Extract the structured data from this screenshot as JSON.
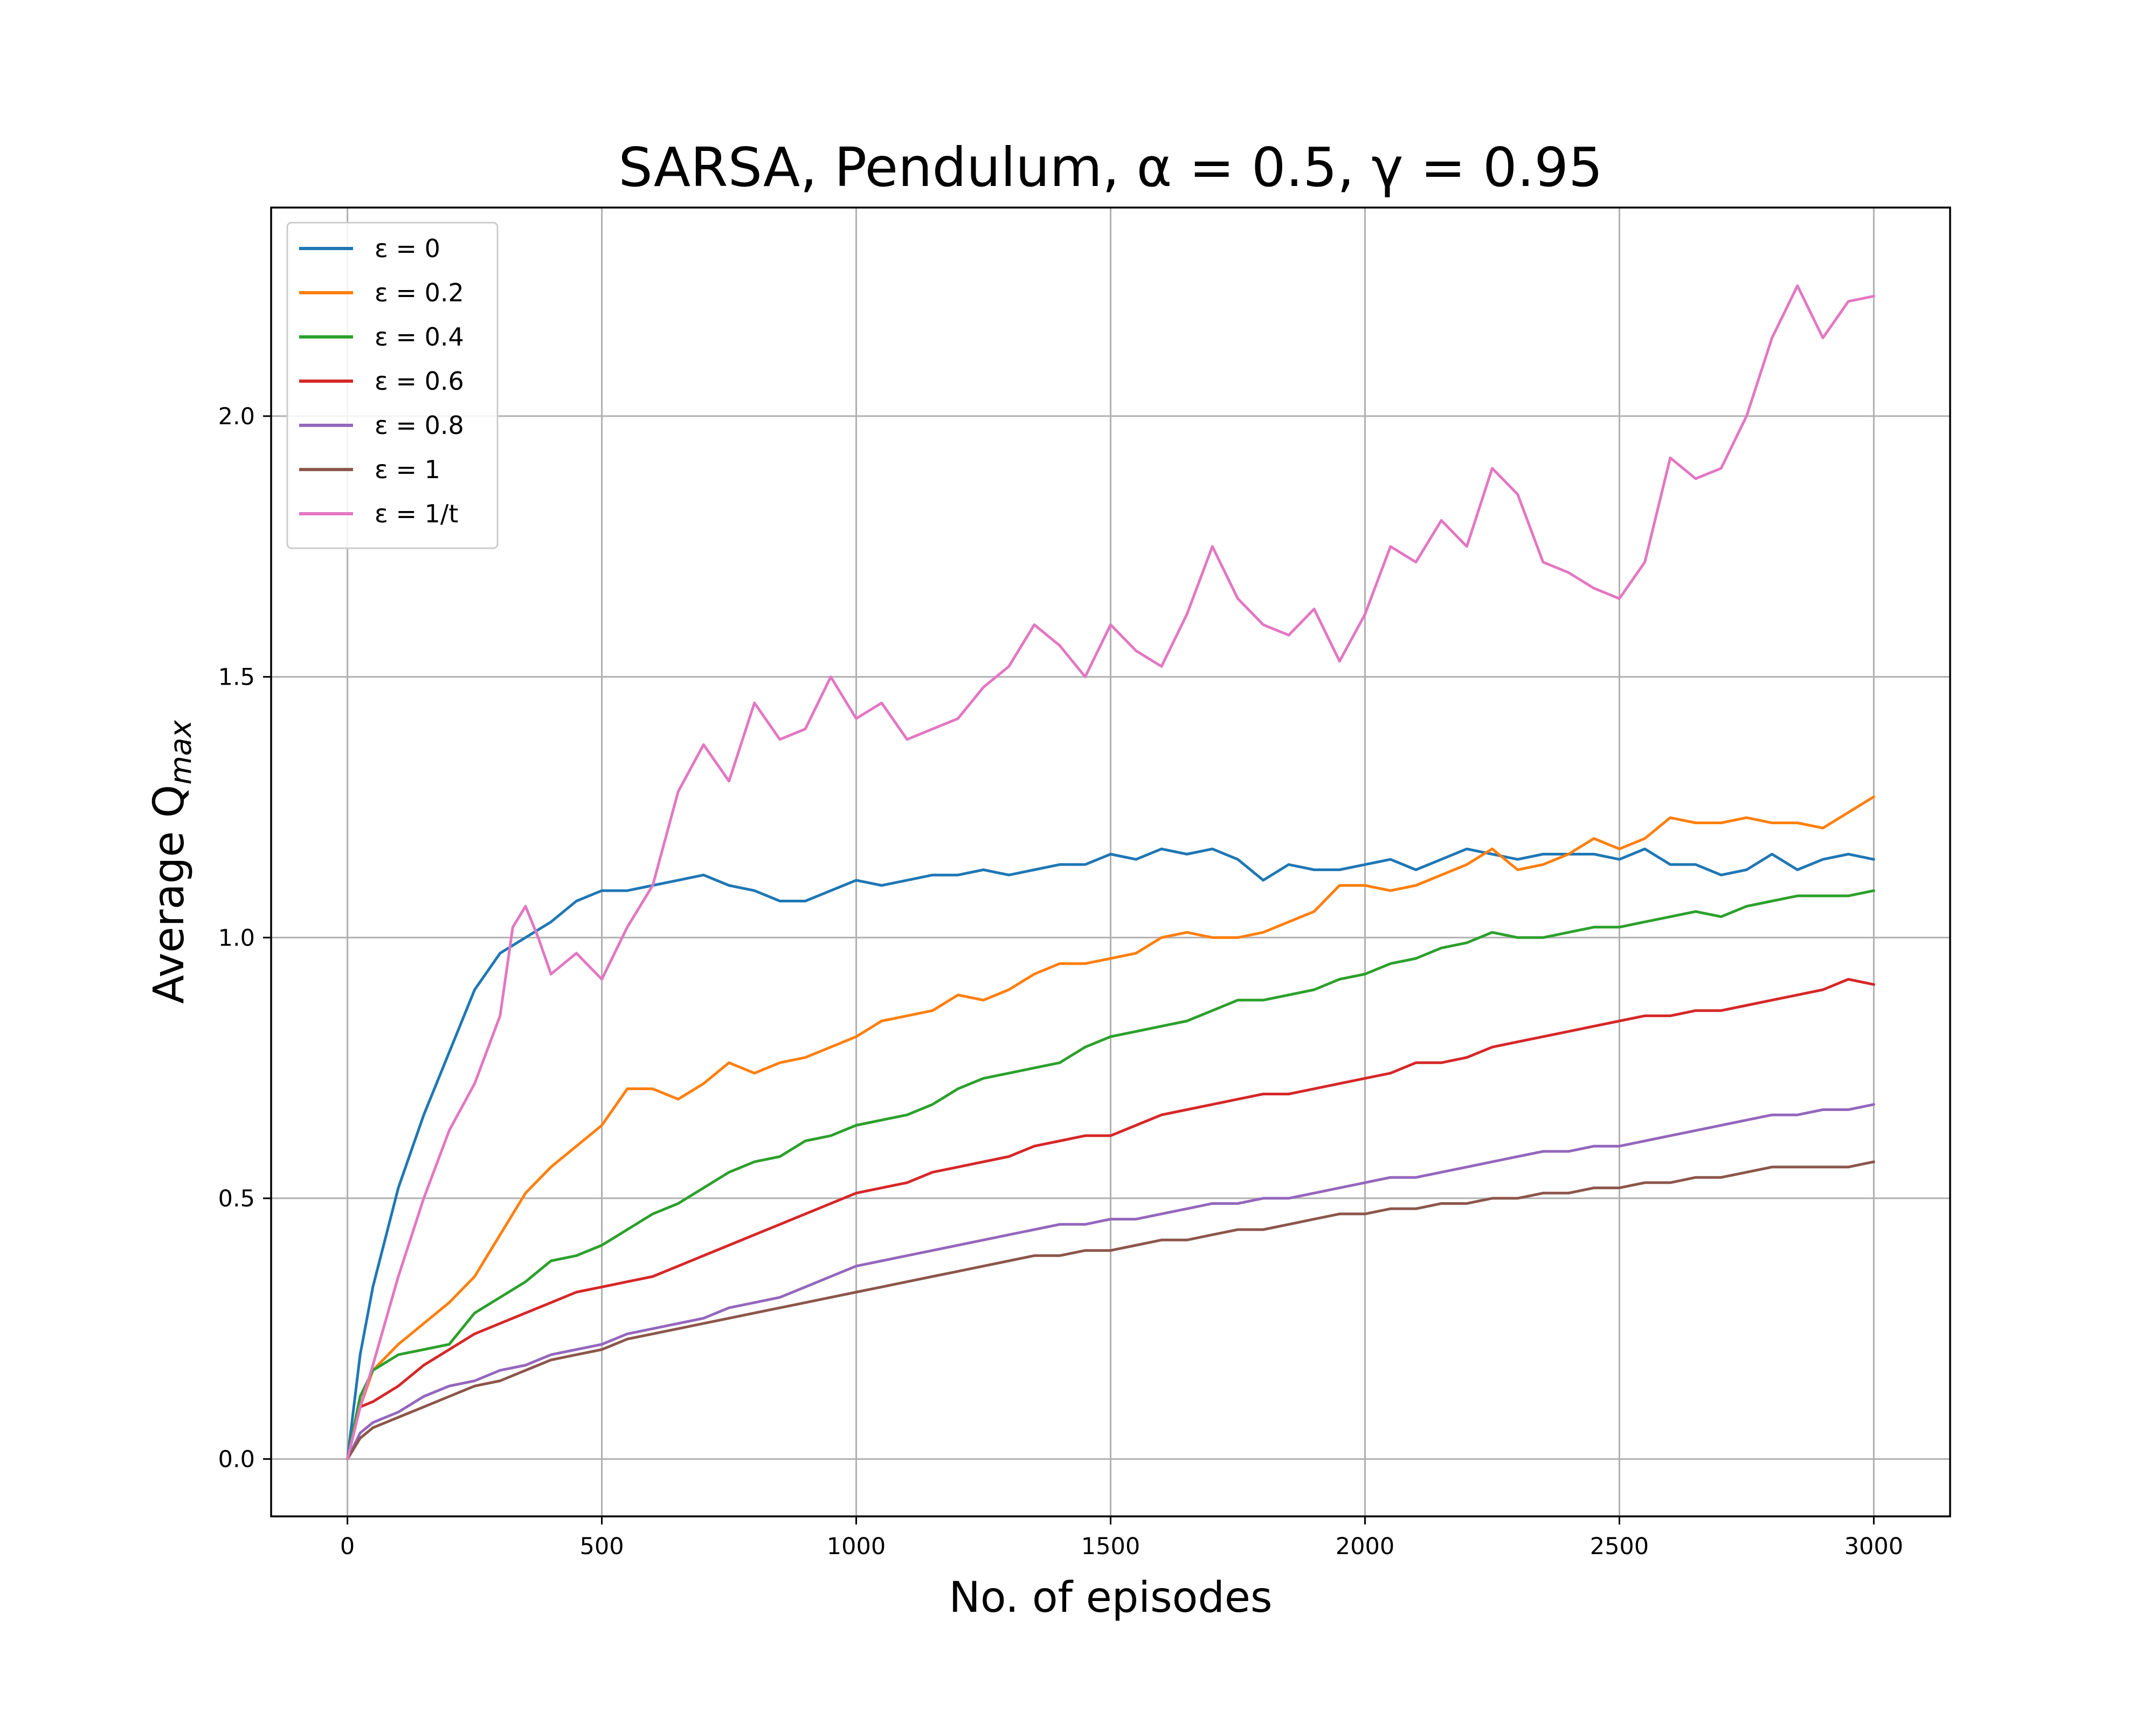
{
  "chart_data": {
    "type": "line",
    "title": "SARSA, Pendulum, α = 0.5, γ = 0.95",
    "xlabel": "No. of episodes",
    "ylabel_main": "Average Q",
    "ylabel_sub": "max",
    "xlim": [
      -150,
      3150
    ],
    "ylim": [
      -0.11,
      2.4
    ],
    "xticks": [
      0,
      500,
      1000,
      1500,
      2000,
      2500,
      3000
    ],
    "yticks": [
      0.0,
      0.5,
      1.0,
      1.5,
      2.0
    ],
    "xtick_labels": [
      "0",
      "500",
      "1000",
      "1500",
      "2000",
      "2500",
      "3000"
    ],
    "ytick_labels": [
      "0.0",
      "0.5",
      "1.0",
      "1.5",
      "2.0"
    ],
    "grid": true,
    "legend_position": "top-left",
    "series": [
      {
        "name": "ε = 0",
        "color": "#1f77b4",
        "x": [
          0,
          25,
          50,
          100,
          150,
          200,
          250,
          300,
          350,
          400,
          450,
          500,
          550,
          600,
          650,
          700,
          750,
          800,
          850,
          900,
          950,
          1000,
          1050,
          1100,
          1150,
          1200,
          1250,
          1300,
          1350,
          1400,
          1450,
          1500,
          1550,
          1600,
          1650,
          1700,
          1750,
          1800,
          1850,
          1900,
          1950,
          2000,
          2050,
          2100,
          2150,
          2200,
          2250,
          2300,
          2350,
          2400,
          2450,
          2500,
          2550,
          2600,
          2650,
          2700,
          2750,
          2800,
          2850,
          2900,
          2950,
          3000
        ],
        "y": [
          0.0,
          0.2,
          0.33,
          0.52,
          0.66,
          0.78,
          0.9,
          0.97,
          1.0,
          1.03,
          1.07,
          1.09,
          1.09,
          1.1,
          1.11,
          1.12,
          1.1,
          1.09,
          1.07,
          1.07,
          1.09,
          1.11,
          1.1,
          1.11,
          1.12,
          1.12,
          1.13,
          1.12,
          1.13,
          1.14,
          1.14,
          1.16,
          1.15,
          1.17,
          1.16,
          1.17,
          1.15,
          1.11,
          1.14,
          1.13,
          1.13,
          1.14,
          1.15,
          1.13,
          1.15,
          1.17,
          1.16,
          1.15,
          1.16,
          1.16,
          1.16,
          1.15,
          1.17,
          1.14,
          1.14,
          1.12,
          1.13,
          1.16,
          1.13,
          1.15,
          1.16,
          1.15
        ]
      },
      {
        "name": "ε = 0.2",
        "color": "#ff7f0e",
        "x": [
          0,
          25,
          50,
          100,
          150,
          200,
          250,
          300,
          350,
          400,
          450,
          500,
          550,
          600,
          650,
          700,
          750,
          800,
          850,
          900,
          950,
          1000,
          1050,
          1100,
          1150,
          1200,
          1250,
          1300,
          1350,
          1400,
          1450,
          1500,
          1550,
          1600,
          1650,
          1700,
          1750,
          1800,
          1850,
          1900,
          1950,
          2000,
          2050,
          2100,
          2150,
          2200,
          2250,
          2300,
          2350,
          2400,
          2450,
          2500,
          2550,
          2600,
          2650,
          2700,
          2750,
          2800,
          2850,
          2900,
          2950,
          3000
        ],
        "y": [
          0.0,
          0.1,
          0.17,
          0.22,
          0.26,
          0.3,
          0.35,
          0.43,
          0.51,
          0.56,
          0.6,
          0.64,
          0.71,
          0.71,
          0.69,
          0.72,
          0.76,
          0.74,
          0.76,
          0.77,
          0.79,
          0.81,
          0.84,
          0.85,
          0.86,
          0.89,
          0.88,
          0.9,
          0.93,
          0.95,
          0.95,
          0.96,
          0.97,
          1.0,
          1.01,
          1.0,
          1.0,
          1.01,
          1.03,
          1.05,
          1.1,
          1.1,
          1.09,
          1.1,
          1.12,
          1.14,
          1.17,
          1.13,
          1.14,
          1.16,
          1.19,
          1.17,
          1.19,
          1.23,
          1.22,
          1.22,
          1.23,
          1.22,
          1.22,
          1.21,
          1.24,
          1.27
        ]
      },
      {
        "name": "ε = 0.4",
        "color": "#2ca02c",
        "x": [
          0,
          25,
          50,
          100,
          150,
          200,
          250,
          300,
          350,
          400,
          450,
          500,
          550,
          600,
          650,
          700,
          750,
          800,
          850,
          900,
          950,
          1000,
          1050,
          1100,
          1150,
          1200,
          1250,
          1300,
          1350,
          1400,
          1450,
          1500,
          1550,
          1600,
          1650,
          1700,
          1750,
          1800,
          1850,
          1900,
          1950,
          2000,
          2050,
          2100,
          2150,
          2200,
          2250,
          2300,
          2350,
          2400,
          2450,
          2500,
          2550,
          2600,
          2650,
          2700,
          2750,
          2800,
          2850,
          2900,
          2950,
          3000
        ],
        "y": [
          0.0,
          0.12,
          0.17,
          0.2,
          0.21,
          0.22,
          0.28,
          0.31,
          0.34,
          0.38,
          0.39,
          0.41,
          0.44,
          0.47,
          0.49,
          0.52,
          0.55,
          0.57,
          0.58,
          0.61,
          0.62,
          0.64,
          0.65,
          0.66,
          0.68,
          0.71,
          0.73,
          0.74,
          0.75,
          0.76,
          0.79,
          0.81,
          0.82,
          0.83,
          0.84,
          0.86,
          0.88,
          0.88,
          0.89,
          0.9,
          0.92,
          0.93,
          0.95,
          0.96,
          0.98,
          0.99,
          1.01,
          1.0,
          1.0,
          1.01,
          1.02,
          1.02,
          1.03,
          1.04,
          1.05,
          1.04,
          1.06,
          1.07,
          1.08,
          1.08,
          1.08,
          1.09
        ]
      },
      {
        "name": "ε = 0.6",
        "color": "#d62728",
        "x": [
          0,
          25,
          50,
          100,
          150,
          200,
          250,
          300,
          350,
          400,
          450,
          500,
          550,
          600,
          650,
          700,
          750,
          800,
          850,
          900,
          950,
          1000,
          1050,
          1100,
          1150,
          1200,
          1250,
          1300,
          1350,
          1400,
          1450,
          1500,
          1550,
          1600,
          1650,
          1700,
          1750,
          1800,
          1850,
          1900,
          1950,
          2000,
          2050,
          2100,
          2150,
          2200,
          2250,
          2300,
          2350,
          2400,
          2450,
          2500,
          2550,
          2600,
          2650,
          2700,
          2750,
          2800,
          2850,
          2900,
          2950,
          3000
        ],
        "y": [
          0.0,
          0.1,
          0.11,
          0.14,
          0.18,
          0.21,
          0.24,
          0.26,
          0.28,
          0.3,
          0.32,
          0.33,
          0.34,
          0.35,
          0.37,
          0.39,
          0.41,
          0.43,
          0.45,
          0.47,
          0.49,
          0.51,
          0.52,
          0.53,
          0.55,
          0.56,
          0.57,
          0.58,
          0.6,
          0.61,
          0.62,
          0.62,
          0.64,
          0.66,
          0.67,
          0.68,
          0.69,
          0.7,
          0.7,
          0.71,
          0.72,
          0.73,
          0.74,
          0.76,
          0.76,
          0.77,
          0.79,
          0.8,
          0.81,
          0.82,
          0.83,
          0.84,
          0.85,
          0.85,
          0.86,
          0.86,
          0.87,
          0.88,
          0.89,
          0.9,
          0.92,
          0.91
        ]
      },
      {
        "name": "ε = 0.8",
        "color": "#9467bd",
        "x": [
          0,
          25,
          50,
          100,
          150,
          200,
          250,
          300,
          350,
          400,
          450,
          500,
          550,
          600,
          650,
          700,
          750,
          800,
          850,
          900,
          950,
          1000,
          1050,
          1100,
          1150,
          1200,
          1250,
          1300,
          1350,
          1400,
          1450,
          1500,
          1550,
          1600,
          1650,
          1700,
          1750,
          1800,
          1850,
          1900,
          1950,
          2000,
          2050,
          2100,
          2150,
          2200,
          2250,
          2300,
          2350,
          2400,
          2450,
          2500,
          2550,
          2600,
          2650,
          2700,
          2750,
          2800,
          2850,
          2900,
          2950,
          3000
        ],
        "y": [
          0.0,
          0.05,
          0.07,
          0.09,
          0.12,
          0.14,
          0.15,
          0.17,
          0.18,
          0.2,
          0.21,
          0.22,
          0.24,
          0.25,
          0.26,
          0.27,
          0.29,
          0.3,
          0.31,
          0.33,
          0.35,
          0.37,
          0.38,
          0.39,
          0.4,
          0.41,
          0.42,
          0.43,
          0.44,
          0.45,
          0.45,
          0.46,
          0.46,
          0.47,
          0.48,
          0.49,
          0.49,
          0.5,
          0.5,
          0.51,
          0.52,
          0.53,
          0.54,
          0.54,
          0.55,
          0.56,
          0.57,
          0.58,
          0.59,
          0.59,
          0.6,
          0.6,
          0.61,
          0.62,
          0.63,
          0.64,
          0.65,
          0.66,
          0.66,
          0.67,
          0.67,
          0.68
        ]
      },
      {
        "name": "ε = 1",
        "color": "#8c564b",
        "x": [
          0,
          25,
          50,
          100,
          150,
          200,
          250,
          300,
          350,
          400,
          450,
          500,
          550,
          600,
          650,
          700,
          750,
          800,
          850,
          900,
          950,
          1000,
          1050,
          1100,
          1150,
          1200,
          1250,
          1300,
          1350,
          1400,
          1450,
          1500,
          1550,
          1600,
          1650,
          1700,
          1750,
          1800,
          1850,
          1900,
          1950,
          2000,
          2050,
          2100,
          2150,
          2200,
          2250,
          2300,
          2350,
          2400,
          2450,
          2500,
          2550,
          2600,
          2650,
          2700,
          2750,
          2800,
          2850,
          2900,
          2950,
          3000
        ],
        "y": [
          0.0,
          0.04,
          0.06,
          0.08,
          0.1,
          0.12,
          0.14,
          0.15,
          0.17,
          0.19,
          0.2,
          0.21,
          0.23,
          0.24,
          0.25,
          0.26,
          0.27,
          0.28,
          0.29,
          0.3,
          0.31,
          0.32,
          0.33,
          0.34,
          0.35,
          0.36,
          0.37,
          0.38,
          0.39,
          0.39,
          0.4,
          0.4,
          0.41,
          0.42,
          0.42,
          0.43,
          0.44,
          0.44,
          0.45,
          0.46,
          0.47,
          0.47,
          0.48,
          0.48,
          0.49,
          0.49,
          0.5,
          0.5,
          0.51,
          0.51,
          0.52,
          0.52,
          0.53,
          0.53,
          0.54,
          0.54,
          0.55,
          0.56,
          0.56,
          0.56,
          0.56,
          0.57
        ]
      },
      {
        "name": "ε = 1/t",
        "color": "#e377c2",
        "x": [
          0,
          25,
          50,
          100,
          150,
          200,
          250,
          300,
          325,
          350,
          375,
          400,
          450,
          500,
          550,
          600,
          650,
          700,
          750,
          800,
          850,
          900,
          950,
          1000,
          1050,
          1100,
          1150,
          1200,
          1250,
          1300,
          1350,
          1400,
          1450,
          1500,
          1550,
          1600,
          1650,
          1700,
          1750,
          1800,
          1850,
          1900,
          1950,
          2000,
          2050,
          2100,
          2150,
          2200,
          2250,
          2300,
          2350,
          2400,
          2450,
          2500,
          2550,
          2600,
          2650,
          2700,
          2750,
          2800,
          2850,
          2900,
          2950,
          3000
        ],
        "y": [
          0.0,
          0.1,
          0.18,
          0.35,
          0.5,
          0.63,
          0.72,
          0.85,
          1.02,
          1.06,
          1.0,
          0.93,
          0.97,
          0.92,
          1.02,
          1.1,
          1.28,
          1.37,
          1.3,
          1.45,
          1.38,
          1.4,
          1.5,
          1.42,
          1.45,
          1.38,
          1.4,
          1.42,
          1.48,
          1.52,
          1.6,
          1.56,
          1.5,
          1.6,
          1.55,
          1.52,
          1.62,
          1.75,
          1.65,
          1.6,
          1.58,
          1.63,
          1.53,
          1.62,
          1.75,
          1.72,
          1.8,
          1.75,
          1.9,
          1.85,
          1.72,
          1.7,
          1.67,
          1.65,
          1.72,
          1.92,
          1.88,
          1.9,
          2.0,
          2.15,
          2.25,
          2.15,
          2.22,
          2.23
        ]
      }
    ]
  }
}
